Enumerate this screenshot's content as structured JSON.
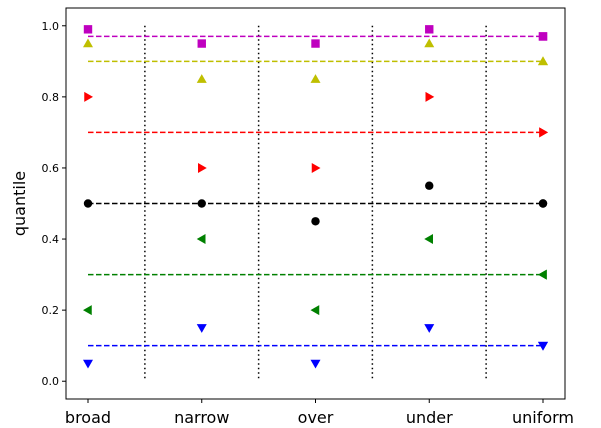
{
  "chart_data": {
    "type": "scatter",
    "title": "",
    "xlabel": "",
    "ylabel": "quantile",
    "categories": [
      "broad",
      "narrow",
      "over",
      "under",
      "uniform"
    ],
    "ylim": [
      -0.05,
      1.05
    ],
    "yticks": [
      "0.0",
      "0.2",
      "0.4",
      "0.6",
      "0.8",
      "1.0"
    ],
    "grid": false,
    "legend": "none",
    "separators": "dotted vertical lines between categories",
    "series": [
      {
        "marker": "triangle-down",
        "color": "#0000ff",
        "values": [
          0.05,
          0.15,
          0.05,
          0.15,
          0.1
        ],
        "reference": 0.1
      },
      {
        "marker": "triangle-left",
        "color": "#008000",
        "values": [
          0.2,
          0.4,
          0.2,
          0.4,
          0.3
        ],
        "reference": 0.3
      },
      {
        "marker": "circle",
        "color": "#000000",
        "values": [
          0.5,
          0.5,
          0.45,
          0.55,
          0.5
        ],
        "reference": 0.5
      },
      {
        "marker": "triangle-right",
        "color": "#ff0000",
        "values": [
          0.8,
          0.6,
          0.6,
          0.8,
          0.7
        ],
        "reference": 0.7
      },
      {
        "marker": "triangle-up",
        "color": "#bfbf00",
        "values": [
          0.95,
          0.85,
          0.85,
          0.95,
          0.9
        ],
        "reference": 0.9
      },
      {
        "marker": "square",
        "color": "#bf00bf",
        "values": [
          0.99,
          0.95,
          0.95,
          0.99,
          0.97
        ],
        "reference": 0.97
      }
    ]
  }
}
